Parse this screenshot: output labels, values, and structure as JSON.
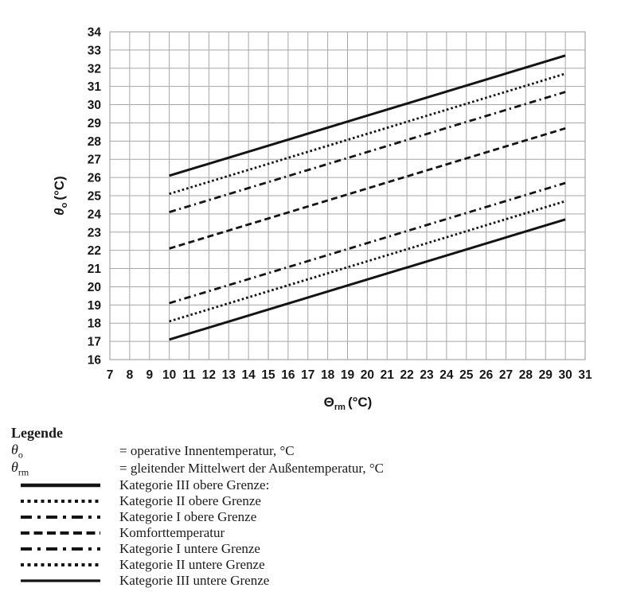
{
  "chart_data": {
    "type": "line",
    "title": "",
    "xlabel": {
      "symbol": "Θ",
      "subscript": "rm",
      "unit": "(°C)"
    },
    "ylabel": {
      "symbol": "θ",
      "subscript": "o",
      "unit": "(°C)"
    },
    "xlim": [
      7,
      31
    ],
    "ylim": [
      16,
      34
    ],
    "grid": true,
    "x_ticks": [
      7,
      8,
      9,
      10,
      11,
      12,
      13,
      14,
      15,
      16,
      17,
      18,
      19,
      20,
      21,
      22,
      23,
      24,
      25,
      26,
      27,
      28,
      29,
      30,
      31
    ],
    "y_ticks": [
      16,
      17,
      18,
      19,
      20,
      21,
      22,
      23,
      24,
      25,
      26,
      27,
      28,
      29,
      30,
      31,
      32,
      33,
      34
    ],
    "series": [
      {
        "name": "Kategorie III obere Grenze",
        "style": "solid",
        "x": [
          10,
          30
        ],
        "y": [
          26.1,
          32.7
        ]
      },
      {
        "name": "Kategorie II obere Grenze",
        "style": "dotted",
        "x": [
          10,
          30
        ],
        "y": [
          25.1,
          31.7
        ]
      },
      {
        "name": "Kategorie I obere Grenze",
        "style": "dashdot",
        "x": [
          10,
          30
        ],
        "y": [
          24.1,
          30.7
        ]
      },
      {
        "name": "Komforttemperatur",
        "style": "dashed",
        "x": [
          10,
          30
        ],
        "y": [
          22.1,
          28.7
        ]
      },
      {
        "name": "Kategorie I untere Grenze",
        "style": "dashdot",
        "x": [
          10,
          30
        ],
        "y": [
          19.1,
          25.7
        ]
      },
      {
        "name": "Kategorie II untere Grenze",
        "style": "dotted",
        "x": [
          10,
          30
        ],
        "y": [
          18.1,
          24.7
        ]
      },
      {
        "name": "Kategorie III untere Grenze",
        "style": "solid",
        "x": [
          10,
          30
        ],
        "y": [
          17.1,
          23.7
        ]
      }
    ],
    "colors": {
      "line": "#141414",
      "grid": "#a6a6a6"
    },
    "legend_position": "bottom-left"
  },
  "legend": {
    "title": "Legende",
    "symbol_rows": [
      {
        "symbol": "θ",
        "subscript": "o",
        "text": "= operative Innentemperatur, °C"
      },
      {
        "symbol": "θ",
        "subscript": "rm",
        "text": "= gleitender Mittelwert der Außentemperatur, °C"
      }
    ],
    "line_rows": [
      {
        "style": "solid-thick",
        "label": "Kategorie III obere Grenze:"
      },
      {
        "style": "dotted",
        "label": "Kategorie II obere Grenze"
      },
      {
        "style": "dashdot",
        "label": "Kategorie I obere Grenze"
      },
      {
        "style": "dashed",
        "label": "Komforttemperatur"
      },
      {
        "style": "dashdot",
        "label": "Kategorie I untere Grenze"
      },
      {
        "style": "dotted",
        "label": "Kategorie II untere Grenze"
      },
      {
        "style": "solid",
        "label": "Kategorie III untere Grenze"
      }
    ]
  }
}
